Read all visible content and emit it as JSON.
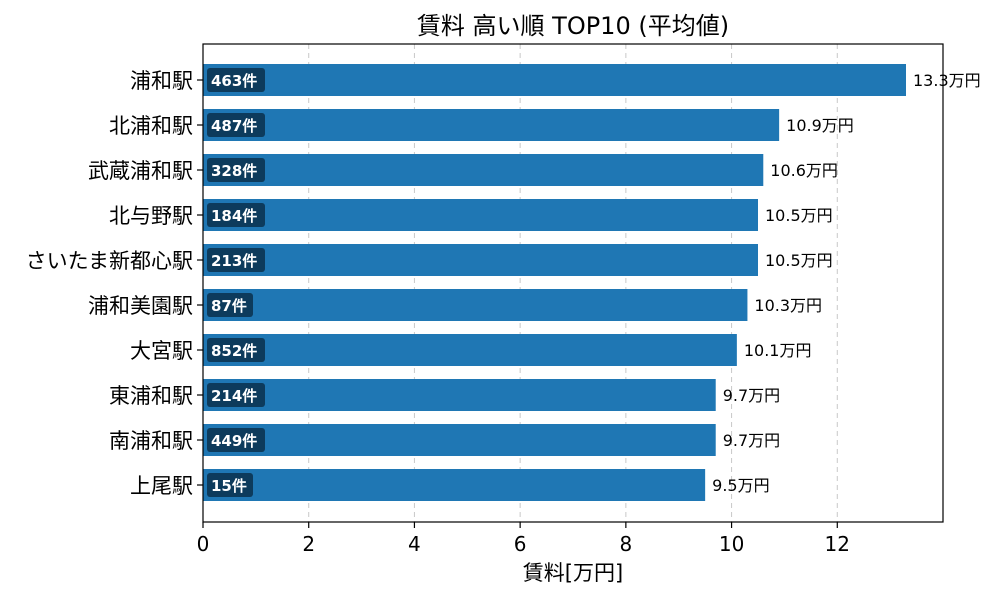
{
  "chart_data": {
    "type": "bar",
    "orientation": "horizontal",
    "title": "賃料 高い順 TOP10 (平均値)",
    "xlabel": "賃料[万円]",
    "ylabel": "",
    "xlim": [
      0,
      14
    ],
    "xticks": [
      "0",
      "2",
      "4",
      "6",
      "8",
      "10",
      "12"
    ],
    "grid": "x",
    "colors": {
      "bar": "#1f77b4",
      "badge": "#0d3b5c"
    },
    "categories": [
      "浦和駅",
      "北浦和駅",
      "武蔵浦和駅",
      "北与野駅",
      "さいたま新都心駅",
      "浦和美園駅",
      "大宮駅",
      "東浦和駅",
      "南浦和駅",
      "上尾駅"
    ],
    "values": [
      13.3,
      10.9,
      10.6,
      10.5,
      10.5,
      10.3,
      10.1,
      9.7,
      9.7,
      9.5
    ],
    "value_labels": [
      "13.3万円",
      "10.9万円",
      "10.6万円",
      "10.5万円",
      "10.5万円",
      "10.3万円",
      "10.1万円",
      "9.7万円",
      "9.7万円",
      "9.5万円"
    ],
    "count_labels": [
      "463件",
      "487件",
      "328件",
      "184件",
      "213件",
      "87件",
      "852件",
      "214件",
      "449件",
      "15件"
    ]
  }
}
